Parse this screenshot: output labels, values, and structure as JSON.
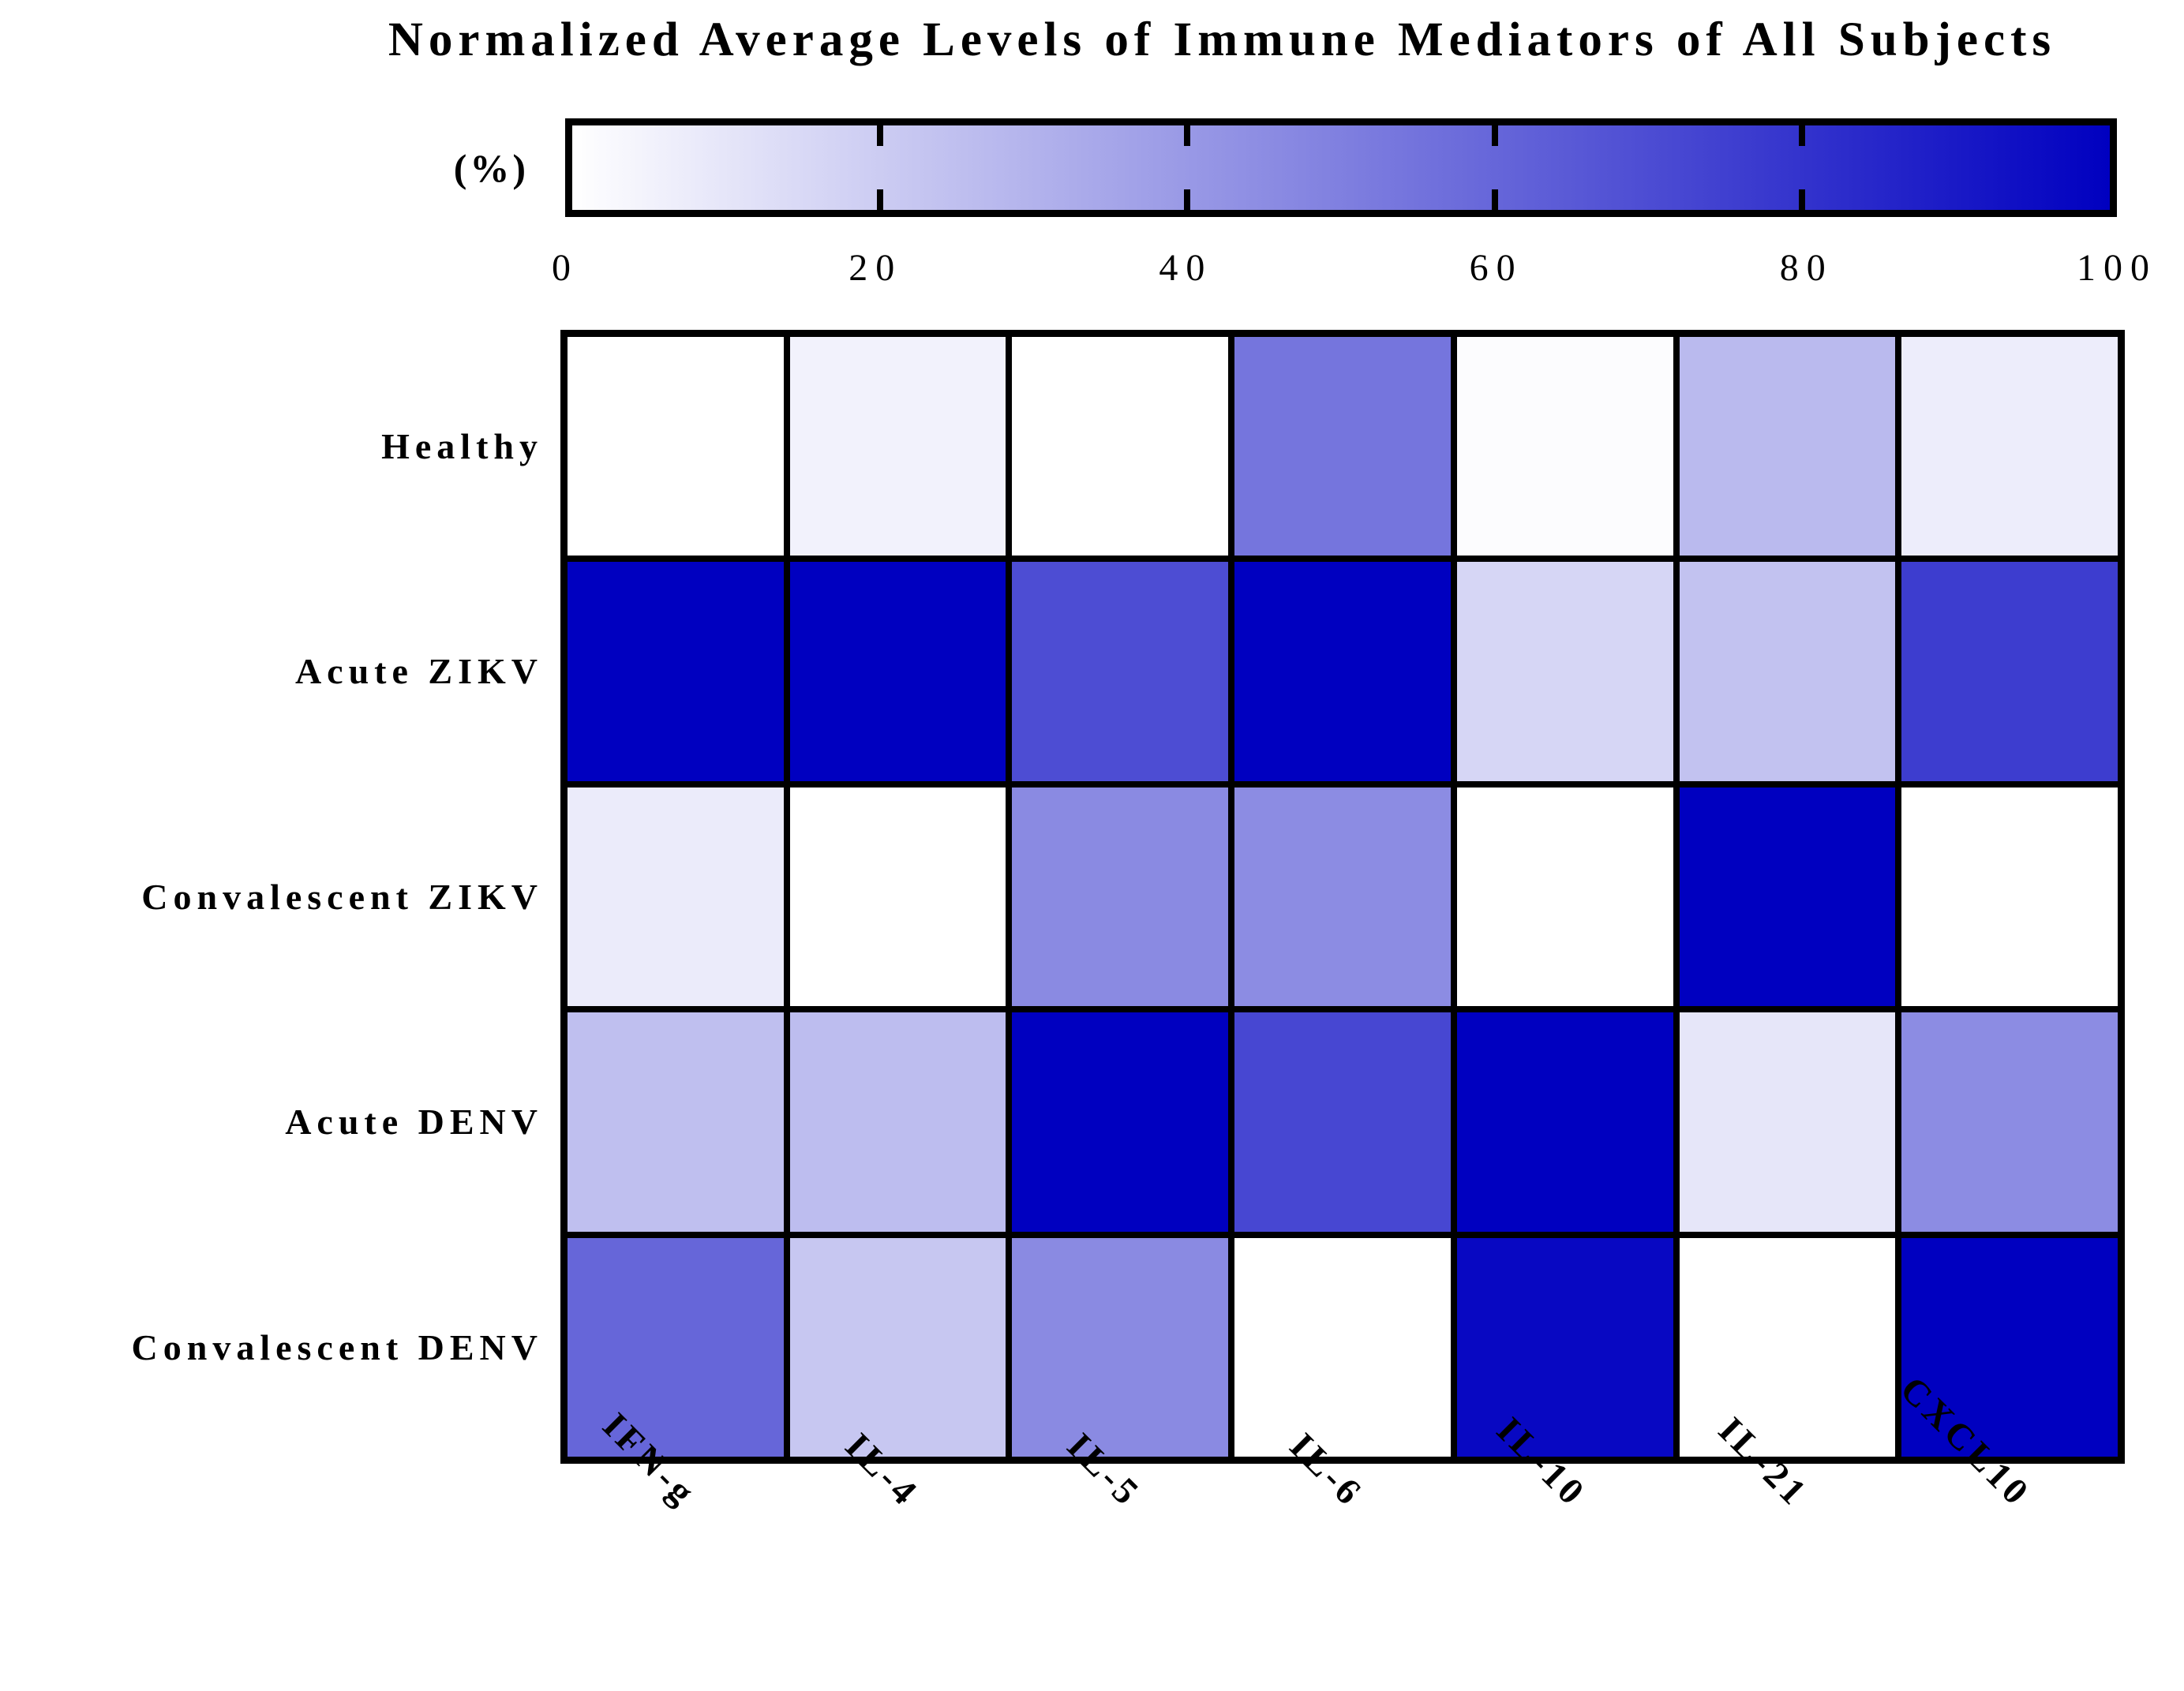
{
  "colorbar": {
    "label": "(%)",
    "ticks": [
      "0",
      "20",
      "40",
      "60",
      "80",
      "100"
    ],
    "tick_values": [
      0,
      20,
      40,
      60,
      80,
      100
    ],
    "marked_ticks": [
      20,
      40,
      60,
      80
    ],
    "min_color": "#FFFFFF",
    "max_color": "#0000C0"
  },
  "chart_data": {
    "type": "heatmap",
    "title": "Normalized Average Levels of Immune Mediators of All Subjects",
    "unit": "%",
    "legend_position": "top",
    "axis_range": [
      0,
      100
    ],
    "rows": [
      "Healthy",
      "Acute ZIKV",
      "Convalescent ZIKV",
      "Acute DENV",
      "Convalescent DENV"
    ],
    "columns": [
      "IFN-g",
      "IL-4",
      "IL-5",
      "IL-6",
      "IL-10",
      "IL-21",
      "CXCL10"
    ],
    "values": [
      [
        0,
        5,
        0,
        54,
        1,
        27,
        7
      ],
      [
        100,
        100,
        70,
        100,
        16,
        24,
        76
      ],
      [
        8,
        0,
        46,
        45,
        0,
        100,
        0
      ],
      [
        25,
        26,
        100,
        72,
        100,
        10,
        45
      ],
      [
        60,
        22,
        46,
        0,
        97,
        0,
        100
      ]
    ]
  }
}
